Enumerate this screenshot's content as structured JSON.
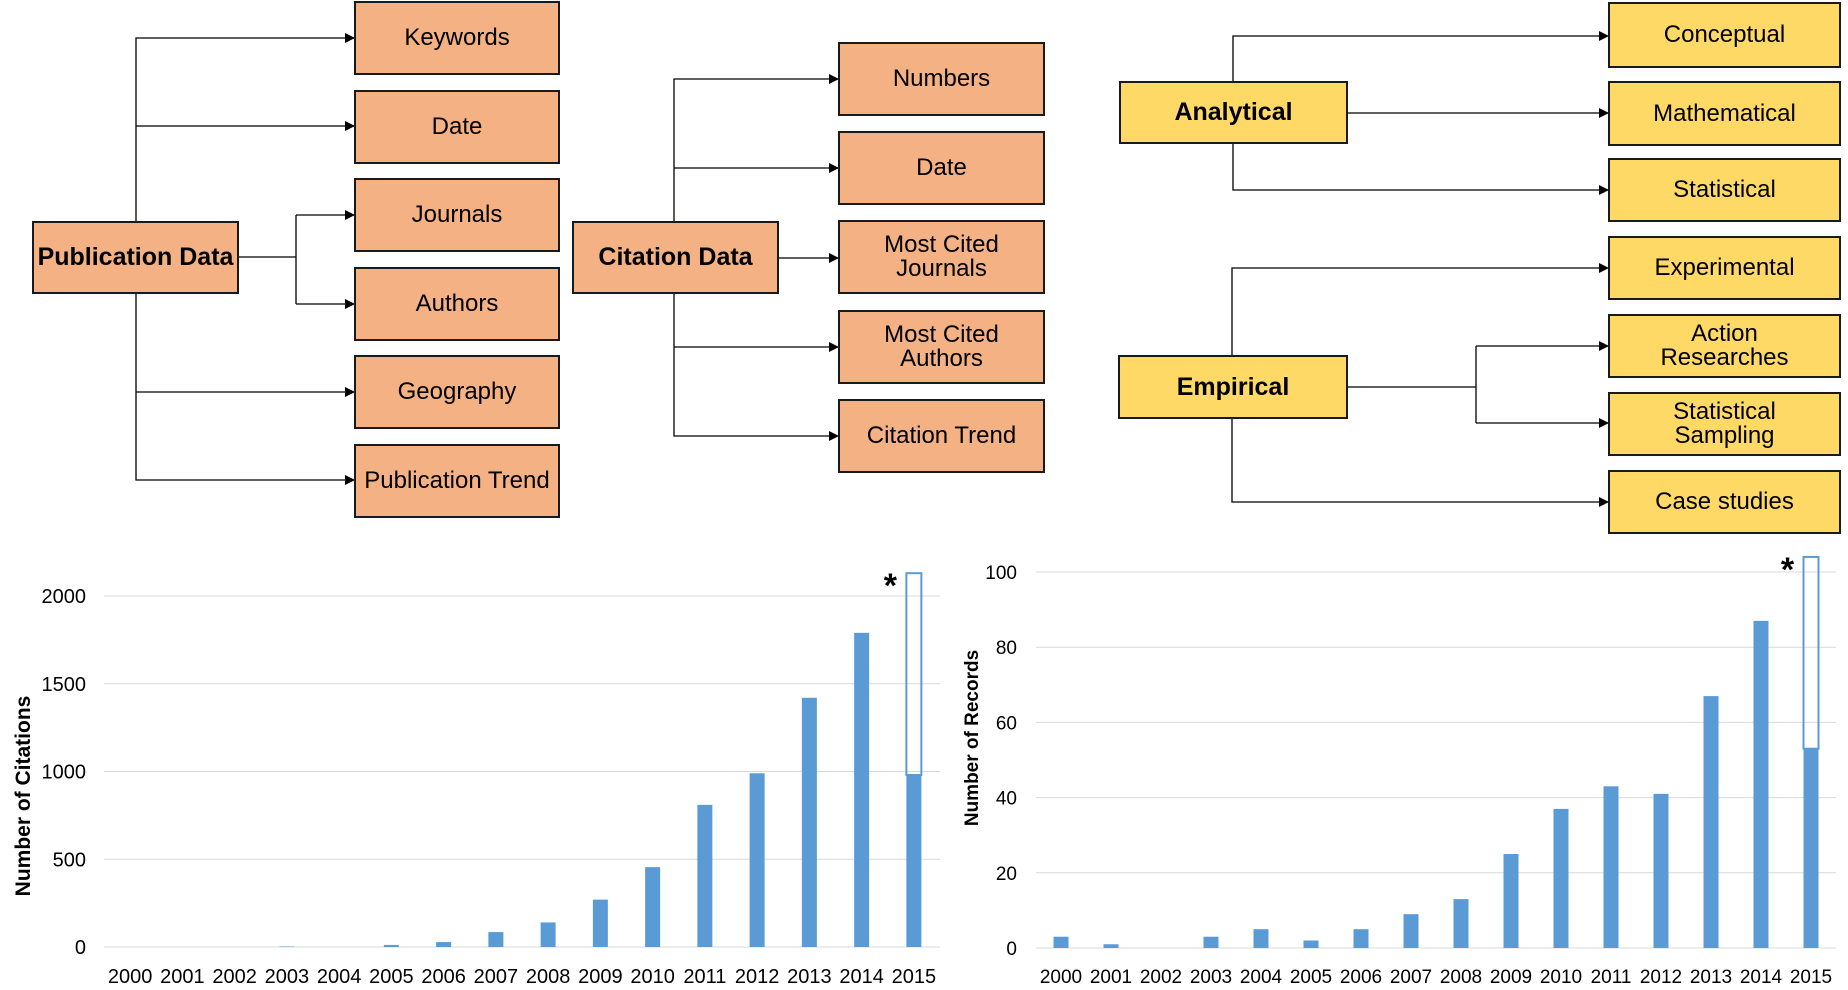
{
  "publication_diagram": {
    "root": "Publication Data",
    "children": [
      "Keywords",
      "Date",
      "Journals",
      "Authors",
      "Geography",
      "Publication Trend"
    ]
  },
  "citation_diagram": {
    "root": "Citation Data",
    "children": [
      "Numbers",
      "Date",
      "Most Cited Journals",
      "Most Cited Authors",
      "Citation Trend"
    ]
  },
  "methods_diagram": {
    "analytical": {
      "label": "Analytical",
      "children": [
        "Conceptual",
        "Mathematical",
        "Statistical"
      ]
    },
    "empirical": {
      "label": "Empirical",
      "children": [
        "Experimental",
        "Action Researches",
        "Statistical Sampling",
        "Case studies"
      ]
    }
  },
  "colors": {
    "orange_box": "#f4b183",
    "yellow_box": "#ffd966",
    "bar": "#5b9bd5",
    "grid": "#d9d9d9"
  },
  "chart_data": [
    {
      "type": "bar",
      "ylabel": "Number of Citations",
      "xlabel": "",
      "categories": [
        "2000",
        "2001",
        "2002",
        "2003",
        "2004",
        "2005",
        "2006",
        "2007",
        "2008",
        "2009",
        "2010",
        "2011",
        "2012",
        "2013",
        "2014",
        "2015"
      ],
      "values": [
        0,
        0,
        0,
        3,
        0,
        12,
        28,
        85,
        140,
        270,
        455,
        810,
        990,
        1420,
        1790,
        980
      ],
      "projected_values": [
        null,
        null,
        null,
        null,
        null,
        null,
        null,
        null,
        null,
        null,
        null,
        null,
        null,
        null,
        null,
        2130
      ],
      "projection_marker": "*",
      "yticks": [
        0,
        500,
        1000,
        1500,
        2000
      ],
      "ylim": [
        0,
        2200
      ],
      "grid": true
    },
    {
      "type": "bar",
      "ylabel": "Number of Records",
      "xlabel": "",
      "categories": [
        "2000",
        "2001",
        "2002",
        "2003",
        "2004",
        "2005",
        "2006",
        "2007",
        "2008",
        "2009",
        "2010",
        "2011",
        "2012",
        "2013",
        "2014",
        "2015"
      ],
      "values": [
        3,
        1,
        0,
        3,
        5,
        2,
        5,
        9,
        13,
        25,
        37,
        43,
        41,
        67,
        87,
        53
      ],
      "projected_values": [
        null,
        null,
        null,
        null,
        null,
        null,
        null,
        null,
        null,
        null,
        null,
        null,
        null,
        null,
        null,
        104
      ],
      "projection_marker": "*",
      "yticks": [
        0,
        20,
        40,
        60,
        80,
        100
      ],
      "ylim": [
        0,
        105
      ],
      "grid": true
    }
  ]
}
